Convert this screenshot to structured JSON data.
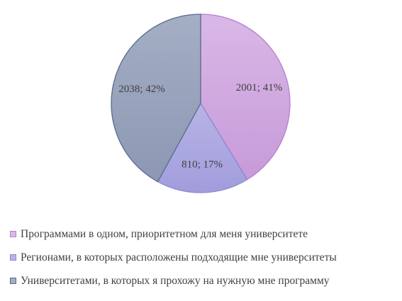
{
  "chart_data": {
    "type": "pie",
    "categories": [
      "Программами в одном, приоритетном для меня университете",
      "Регионами, в которых расположены подходящие мне университеты",
      "Университетами, в которых я прохожу на нужную мне программу"
    ],
    "values": [
      2001,
      810,
      2038
    ],
    "percents": [
      41,
      17,
      42
    ],
    "data_labels": [
      "2001; 41%",
      "810; 17%",
      "2038; 42%"
    ],
    "colors": [
      "#d9b8e6",
      "#b7b4e6",
      "#a4aec4"
    ],
    "gradient_dark": [
      "#c79ad9",
      "#a19ddc",
      "#8c98b4"
    ],
    "stroke_colors": [
      "#b77fce",
      "#8f88d4",
      "#5a6a8c"
    ],
    "legend_position": "bottom",
    "title": ""
  }
}
